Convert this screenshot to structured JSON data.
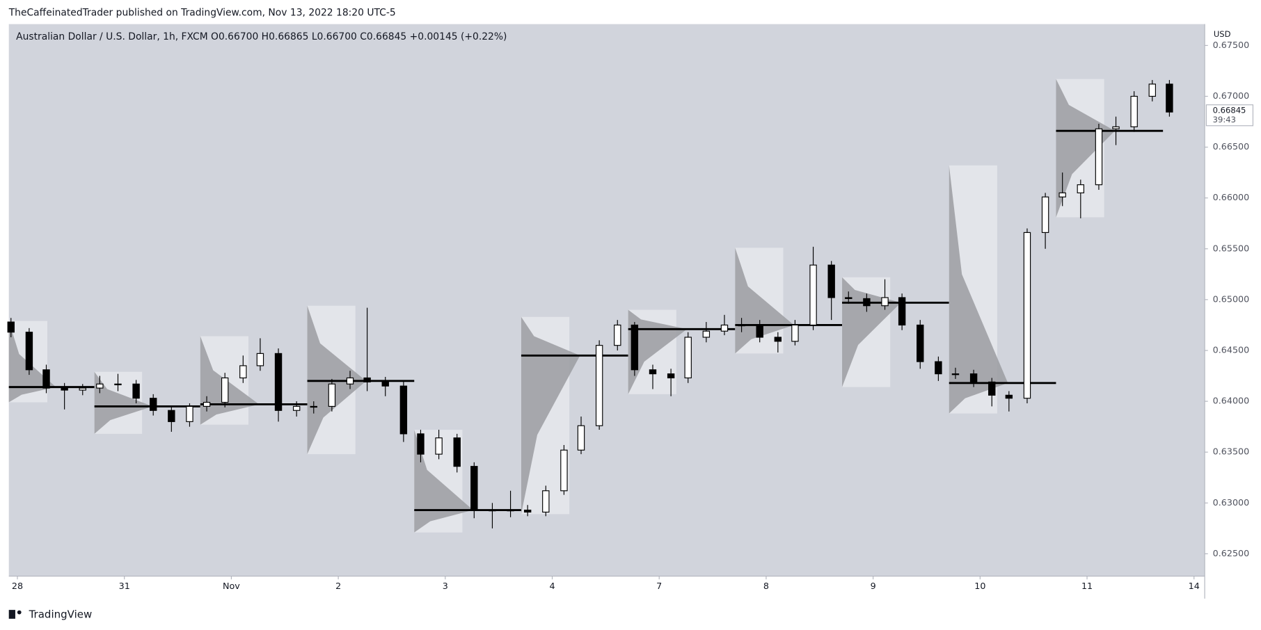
{
  "header": "TheCaffeinatedTrader published on TradingView.com, Nov 13, 2022 18:20 UTC-5",
  "footer": "TradingView",
  "chart_data": {
    "type": "candlestick",
    "title": "Australian Dollar / U.S. Dollar, 1h, FXCM  O0.66700  H0.66865  L0.66700  C0.66845  +0.00145 (+0.22%)",
    "currency": "USD",
    "last_price": 0.66845,
    "countdown": "39:43",
    "xlim": [
      -0.08,
      11.1
    ],
    "ylim": [
      0.6228,
      0.6771
    ],
    "xticks": [
      {
        "value": 0,
        "label": "28"
      },
      {
        "value": 1,
        "label": "31"
      },
      {
        "value": 2,
        "label": "Nov"
      },
      {
        "value": 3,
        "label": "2"
      },
      {
        "value": 4,
        "label": "3"
      },
      {
        "value": 5,
        "label": "4"
      },
      {
        "value": 6,
        "label": "7"
      },
      {
        "value": 7,
        "label": "8"
      },
      {
        "value": 8,
        "label": "9"
      },
      {
        "value": 9,
        "label": "10"
      },
      {
        "value": 10,
        "label": "11"
      },
      {
        "value": 11,
        "label": "14"
      }
    ],
    "yticks": [
      {
        "value": 0.625,
        "label": "0.62500"
      },
      {
        "value": 0.63,
        "label": "0.63000"
      },
      {
        "value": 0.635,
        "label": "0.63500"
      },
      {
        "value": 0.64,
        "label": "0.64000"
      },
      {
        "value": 0.645,
        "label": "0.64500"
      },
      {
        "value": 0.65,
        "label": "0.65000"
      },
      {
        "value": 0.655,
        "label": "0.65500"
      },
      {
        "value": 0.66,
        "label": "0.66000"
      },
      {
        "value": 0.665,
        "label": "0.66500"
      },
      {
        "value": 0.67,
        "label": "0.67000"
      },
      {
        "value": 0.675,
        "label": "0.67500"
      }
    ],
    "x": [
      -0.06,
      0.11,
      0.27,
      0.44,
      0.61,
      0.77,
      0.94,
      1.11,
      1.27,
      1.44,
      1.61,
      1.77,
      1.94,
      2.11,
      2.27,
      2.44,
      2.61,
      2.77,
      2.94,
      3.11,
      3.27,
      3.44,
      3.61,
      3.77,
      3.94,
      4.11,
      4.27,
      4.44,
      4.61,
      4.77,
      4.94,
      5.11,
      5.27,
      5.44,
      5.61,
      5.77,
      5.94,
      6.11,
      6.27,
      6.44,
      6.61,
      6.77,
      6.94,
      7.11,
      7.27,
      7.44,
      7.61,
      7.77,
      7.94,
      8.11,
      8.27,
      8.44,
      8.61,
      8.77,
      8.94,
      9.11,
      9.27,
      9.44,
      9.61,
      9.77,
      9.94,
      10.11,
      10.27,
      10.44,
      10.61,
      10.77
    ],
    "open": [
      0.6478,
      0.6468,
      0.6431,
      0.6413,
      0.6411,
      0.6413,
      0.6417,
      0.6417,
      0.6403,
      0.6391,
      0.638,
      0.6395,
      0.6399,
      0.6423,
      0.6435,
      0.6447,
      0.6391,
      0.6395,
      0.6395,
      0.6417,
      0.6423,
      0.6419,
      0.6415,
      0.6368,
      0.6348,
      0.6364,
      0.6336,
      0.6293,
      0.6293,
      0.6293,
      0.6291,
      0.6312,
      0.6352,
      0.6376,
      0.6455,
      0.6475,
      0.6431,
      0.6427,
      0.6423,
      0.6463,
      0.6469,
      0.6475,
      0.6475,
      0.6463,
      0.6459,
      0.6475,
      0.6534,
      0.6502,
      0.6501,
      0.6494,
      0.6502,
      0.6475,
      0.6439,
      0.6427,
      0.6427,
      0.6419,
      0.6406,
      0.6403,
      0.6566,
      0.6601,
      0.6605,
      0.6613,
      0.6668,
      0.667,
      0.67,
      0.6712
    ],
    "high": [
      0.6482,
      0.6472,
      0.6436,
      0.6418,
      0.6417,
      0.6425,
      0.6427,
      0.6421,
      0.6407,
      0.6395,
      0.6398,
      0.6405,
      0.6428,
      0.6445,
      0.6462,
      0.6452,
      0.64,
      0.64,
      0.6422,
      0.643,
      0.6492,
      0.6424,
      0.642,
      0.6372,
      0.6372,
      0.6368,
      0.634,
      0.63,
      0.6312,
      0.6298,
      0.6317,
      0.6357,
      0.6385,
      0.646,
      0.648,
      0.6478,
      0.6436,
      0.6432,
      0.6468,
      0.6478,
      0.6485,
      0.6482,
      0.648,
      0.6468,
      0.648,
      0.6552,
      0.6538,
      0.6508,
      0.6506,
      0.652,
      0.6506,
      0.648,
      0.6444,
      0.6433,
      0.6431,
      0.6423,
      0.641,
      0.657,
      0.6605,
      0.6625,
      0.6618,
      0.6673,
      0.668,
      0.6705,
      0.6716,
      0.6716
    ],
    "low": [
      0.6463,
      0.6426,
      0.6408,
      0.6392,
      0.6406,
      0.6408,
      0.641,
      0.6398,
      0.6386,
      0.637,
      0.6375,
      0.639,
      0.6394,
      0.6418,
      0.643,
      0.638,
      0.6385,
      0.6388,
      0.639,
      0.6412,
      0.641,
      0.6405,
      0.636,
      0.634,
      0.6343,
      0.633,
      0.6285,
      0.6275,
      0.6286,
      0.6287,
      0.6287,
      0.6308,
      0.6348,
      0.6372,
      0.645,
      0.6425,
      0.6412,
      0.6405,
      0.6418,
      0.6458,
      0.6465,
      0.6468,
      0.6458,
      0.6448,
      0.6455,
      0.647,
      0.648,
      0.6496,
      0.6488,
      0.649,
      0.647,
      0.6432,
      0.642,
      0.6422,
      0.6414,
      0.6395,
      0.639,
      0.6398,
      0.655,
      0.6592,
      0.658,
      0.6608,
      0.6652,
      0.6665,
      0.6695,
      0.668
    ],
    "close": [
      0.6468,
      0.6431,
      0.6413,
      0.6411,
      0.6413,
      0.6417,
      0.6417,
      0.6403,
      0.6391,
      0.638,
      0.6395,
      0.6399,
      0.6423,
      0.6435,
      0.6447,
      0.6391,
      0.6395,
      0.6395,
      0.6417,
      0.6423,
      0.6419,
      0.6415,
      0.6368,
      0.6348,
      0.6364,
      0.6336,
      0.6293,
      0.6293,
      0.6293,
      0.6291,
      0.6312,
      0.6352,
      0.6376,
      0.6455,
      0.6475,
      0.6431,
      0.6427,
      0.6423,
      0.6463,
      0.6469,
      0.6475,
      0.6475,
      0.6463,
      0.6459,
      0.6475,
      0.6534,
      0.6502,
      0.6501,
      0.6494,
      0.6502,
      0.6475,
      0.6439,
      0.6427,
      0.6427,
      0.6419,
      0.6406,
      0.6403,
      0.6566,
      0.6601,
      0.6605,
      0.6613,
      0.6668,
      0.667,
      0.67,
      0.6712,
      0.66845
    ],
    "sessions": [
      {
        "start": -0.08,
        "end": 0.72,
        "high": 0.6479,
        "low": 0.6399,
        "poc": 0.6414
      },
      {
        "start": 0.72,
        "end": 1.71,
        "high": 0.6429,
        "low": 0.6368,
        "poc": 0.6395
      },
      {
        "start": 1.71,
        "end": 2.71,
        "high": 0.6464,
        "low": 0.6377,
        "poc": 0.6397
      },
      {
        "start": 2.71,
        "end": 3.71,
        "high": 0.6494,
        "low": 0.6348,
        "poc": 0.642
      },
      {
        "start": 3.71,
        "end": 4.71,
        "high": 0.6372,
        "low": 0.6271,
        "poc": 0.6293
      },
      {
        "start": 4.71,
        "end": 5.71,
        "high": 0.6483,
        "low": 0.6289,
        "poc": 0.6445
      },
      {
        "start": 5.71,
        "end": 6.71,
        "high": 0.649,
        "low": 0.6407,
        "poc": 0.6471
      },
      {
        "start": 6.71,
        "end": 7.71,
        "high": 0.6551,
        "low": 0.6447,
        "poc": 0.6475
      },
      {
        "start": 7.71,
        "end": 8.71,
        "high": 0.6522,
        "low": 0.6414,
        "poc": 0.6497
      },
      {
        "start": 8.71,
        "end": 9.71,
        "high": 0.6632,
        "low": 0.6388,
        "poc": 0.6418
      },
      {
        "start": 9.71,
        "end": 10.71,
        "high": 0.6717,
        "low": 0.6581,
        "poc": 0.6666
      }
    ]
  }
}
